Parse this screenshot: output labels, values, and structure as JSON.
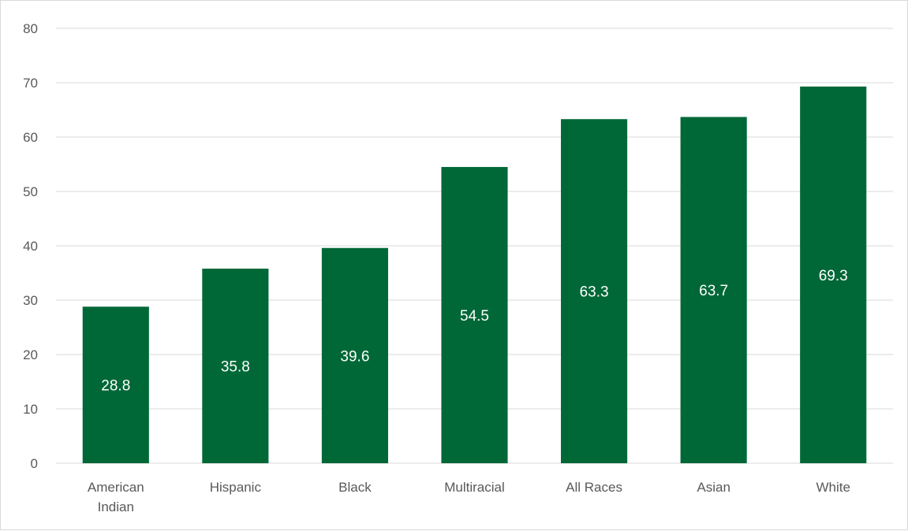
{
  "chart_data": {
    "type": "bar",
    "categories": [
      "American Indian",
      "Hispanic",
      "Black",
      "Multiracial",
      "All Races",
      "Asian",
      "White"
    ],
    "values": [
      28.8,
      35.8,
      39.6,
      54.5,
      63.3,
      63.7,
      69.3
    ],
    "data_labels": [
      "28.8",
      "35.8",
      "39.6",
      "54.5",
      "63.3",
      "63.7",
      "69.3"
    ],
    "show_data_labels_for": [
      0,
      1,
      2,
      3,
      4,
      5,
      6
    ],
    "title": "",
    "xlabel": "",
    "ylabel": "",
    "ylim": [
      0,
      80
    ],
    "yticks": [
      0,
      10,
      20,
      30,
      40,
      50,
      60,
      70,
      80
    ],
    "ytick_labels": [
      "0",
      "10",
      "20",
      "30",
      "40",
      "50",
      "60",
      "70",
      "80"
    ],
    "grid": true,
    "legend": "none",
    "bar_color": "#006837",
    "grid_color": "#d9d9d9",
    "label_color": "#595959",
    "data_label_color": "#ffffff"
  }
}
